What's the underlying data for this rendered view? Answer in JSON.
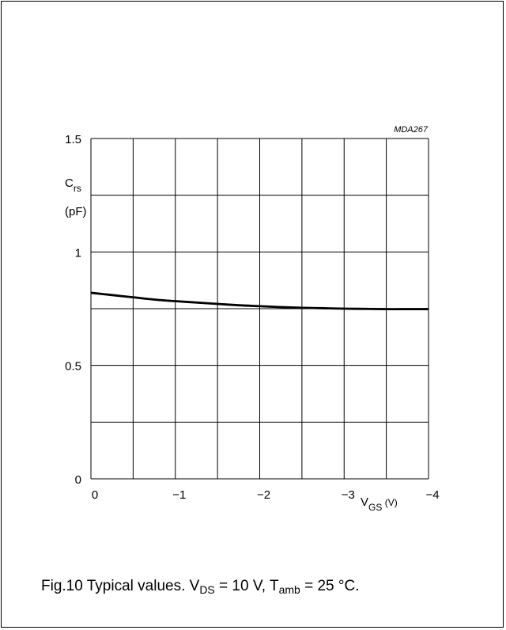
{
  "chart_data": {
    "type": "line",
    "code": "MDA267",
    "ylabel": {
      "main": "C",
      "sub": "rs",
      "unit": "(pF)"
    },
    "xlabel": {
      "main": "V",
      "sub": "GS",
      "unit": " (V)"
    },
    "xlim": [
      0,
      -4
    ],
    "ylim": [
      0,
      1.5
    ],
    "x_ticks": [
      0,
      -1,
      -2,
      -3,
      -4
    ],
    "x_tick_labels": [
      "0",
      "−1",
      "−2",
      "−3",
      "−4"
    ],
    "y_ticks": [
      0,
      0.5,
      1,
      1.5
    ],
    "y_tick_labels": [
      "0",
      "0.5",
      "1",
      "1.5"
    ],
    "grid": true,
    "series": [
      {
        "x": [
          0,
          -0.25,
          -0.5,
          -0.75,
          -1,
          -1.25,
          -1.5,
          -1.75,
          -2,
          -2.25,
          -2.5,
          -2.75,
          -3,
          -3.25,
          -3.5,
          -3.75,
          -4
        ],
        "y": [
          0.82,
          0.81,
          0.8,
          0.79,
          0.783,
          0.777,
          0.771,
          0.765,
          0.761,
          0.757,
          0.754,
          0.752,
          0.75,
          0.749,
          0.748,
          0.748,
          0.748
        ]
      }
    ]
  },
  "caption": {
    "prefix": "Fig.10  Typical values. V",
    "vds_sub": "DS",
    "middle": " = 10 V, T",
    "tamb_sub": "amb",
    "suffix": " = 25 °C."
  }
}
